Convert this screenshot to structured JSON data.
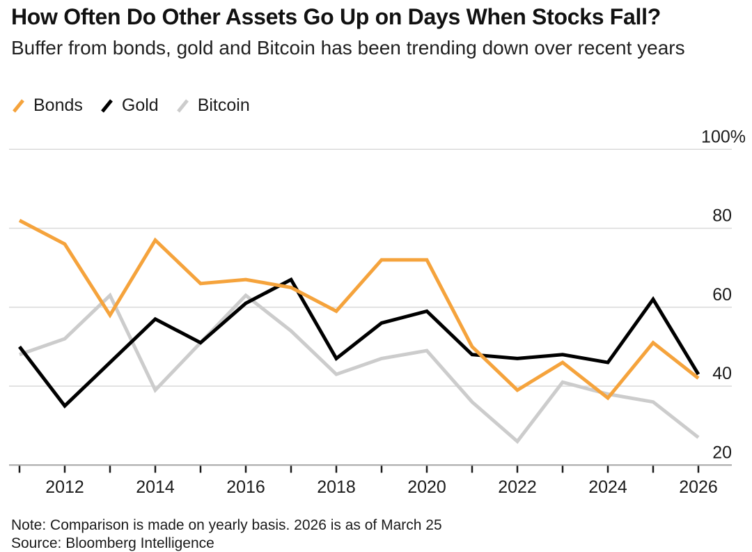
{
  "header": {
    "title": "How Often Do Other Assets Go Up on Days When Stocks Fall?",
    "subtitle": "Buffer from bonds, gold and Bitcoin has been trending down over recent years"
  },
  "legend": {
    "items": [
      {
        "label": "Bonds",
        "color": "#F5A33C"
      },
      {
        "label": "Gold",
        "color": "#000000"
      },
      {
        "label": "Bitcoin",
        "color": "#CCCCCC"
      }
    ]
  },
  "chart_data": {
    "type": "line",
    "title": "How Often Do Other Assets Go Up on Days When Stocks Fall?",
    "subtitle": "Buffer from bonds, gold and Bitcoin has been trending down over recent years",
    "x": [
      2011,
      2012,
      2013,
      2014,
      2015,
      2016,
      2017,
      2018,
      2019,
      2020,
      2021,
      2022,
      2023,
      2024,
      2025,
      2026
    ],
    "series": [
      {
        "name": "Bonds",
        "color": "#F5A33C",
        "values": [
          82,
          76,
          58,
          77,
          66,
          67,
          65,
          59,
          72,
          72,
          50,
          39,
          46,
          37,
          51,
          42
        ]
      },
      {
        "name": "Gold",
        "color": "#000000",
        "values": [
          50,
          35,
          46,
          57,
          51,
          61,
          67,
          47,
          56,
          59,
          48,
          47,
          48,
          46,
          62,
          43
        ]
      },
      {
        "name": "Bitcoin",
        "color": "#CCCCCC",
        "values": [
          48,
          52,
          63,
          39,
          51,
          63,
          54,
          43,
          47,
          49,
          36,
          26,
          41,
          38,
          36,
          27
        ]
      }
    ],
    "y_axis": {
      "unit": "%",
      "range": [
        20,
        100
      ],
      "label_position": "right",
      "ticks": [
        {
          "value": 100,
          "label": "100%"
        },
        {
          "value": 80,
          "label": "80"
        },
        {
          "value": 60,
          "label": "60"
        },
        {
          "value": 40,
          "label": "40"
        },
        {
          "value": 20,
          "label": "20"
        }
      ]
    },
    "x_axis": {
      "years": [
        2011,
        2012,
        2013,
        2014,
        2015,
        2016,
        2017,
        2018,
        2019,
        2020,
        2021,
        2022,
        2023,
        2024,
        2025,
        2026
      ],
      "labeled_years": [
        2012,
        2014,
        2016,
        2018,
        2020,
        2022,
        2024,
        2026
      ]
    },
    "grid": "horizontal",
    "legend_position": "top-left"
  },
  "colors": {
    "grid": "#D9D9D9",
    "axis": "#A6A6A6",
    "tick": "#1A1A1A",
    "text": "#1A1A1A"
  },
  "footer": {
    "note": "Note: Comparison is made on yearly basis. 2026 is as of March 25",
    "source": "Source: Bloomberg Intelligence"
  }
}
